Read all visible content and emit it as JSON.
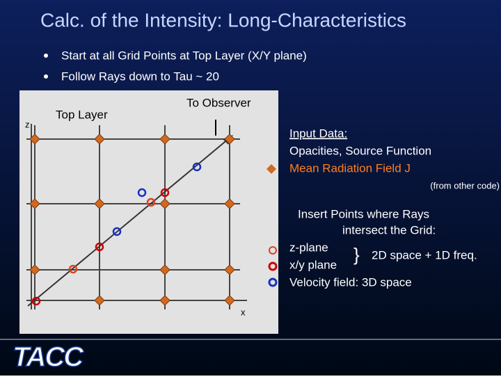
{
  "header": {
    "title": "Calc. of the Intensity: Long-Characteristics"
  },
  "bullets": [
    "Start at all Grid Points at Top Layer (X/Y plane)",
    "Follow Rays down to Tau ~ 20"
  ],
  "diagram": {
    "top_layer": "Top Layer",
    "to_observer": "To Observer",
    "z_axis": "z",
    "x_axis": "x"
  },
  "input": {
    "heading": "Input Data:",
    "line1": "Opacities, Source Function",
    "line2": "Mean Radiation Field J",
    "note": "(from other code)"
  },
  "insert": {
    "line1": "Insert Points where Rays",
    "line2": "intersect the Grid:",
    "z_plane": "z-plane",
    "xy_plane": "x/y plane",
    "brace": "}",
    "freq": "2D space + 1D freq.",
    "velocity": "Velocity field: 3D space"
  },
  "logo": "TACC"
}
